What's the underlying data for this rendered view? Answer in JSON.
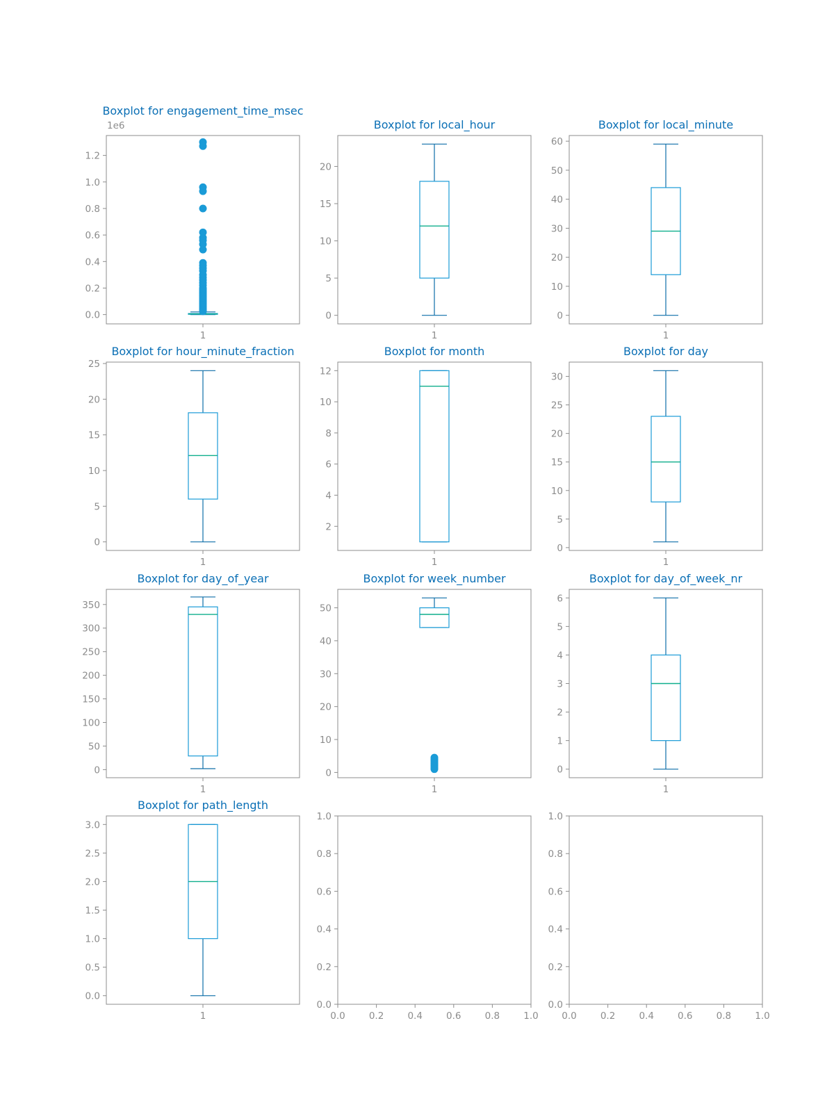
{
  "colors": {
    "title": "#0a6fb5",
    "box": "#1a9bd7",
    "whisker": "#0d6ea8",
    "median": "#0fae8c",
    "flier": "#1a9bd7",
    "axes": "#8c8c8c",
    "tick_label": "#8c8c8c"
  },
  "chart_data": [
    {
      "type": "boxplot",
      "title": "Boxplot for engagement_time_msec",
      "categories": [
        "1"
      ],
      "ylim": [
        -0.07,
        1.35
      ],
      "y_ticks": [
        0.0,
        0.2,
        0.4,
        0.6,
        0.8,
        1.0,
        1.2
      ],
      "y_tick_labels": [
        "0.0",
        "0.2",
        "0.4",
        "0.6",
        "0.8",
        "1.0",
        "1.2"
      ],
      "y_offset_label": "1e6",
      "box": {
        "whislo": 0.0,
        "q1": 0.002,
        "med": 0.005,
        "q3": 0.008,
        "whishi": 0.02
      },
      "fliers": [
        1.3,
        1.27,
        0.96,
        0.93,
        0.8,
        0.62,
        0.58,
        0.56,
        0.53,
        0.49,
        0.39,
        0.37,
        0.35,
        0.33,
        0.3,
        0.28,
        0.26,
        0.24,
        0.22,
        0.2,
        0.19,
        0.18,
        0.17,
        0.16,
        0.15,
        0.14,
        0.13,
        0.12,
        0.11,
        0.1,
        0.09,
        0.08,
        0.07,
        0.06,
        0.05,
        0.04,
        0.035,
        0.03,
        0.025
      ]
    },
    {
      "type": "boxplot",
      "title": "Boxplot for local_hour",
      "categories": [
        "1"
      ],
      "ylim": [
        -1.15,
        24.15
      ],
      "y_ticks": [
        0,
        5,
        10,
        15,
        20
      ],
      "y_tick_labels": [
        "0",
        "5",
        "10",
        "15",
        "20"
      ],
      "box": {
        "whislo": 0,
        "q1": 5,
        "med": 12,
        "q3": 18,
        "whishi": 23
      },
      "fliers": []
    },
    {
      "type": "boxplot",
      "title": "Boxplot for local_minute",
      "categories": [
        "1"
      ],
      "ylim": [
        -2.95,
        61.95
      ],
      "y_ticks": [
        0,
        10,
        20,
        30,
        40,
        50,
        60
      ],
      "y_tick_labels": [
        "0",
        "10",
        "20",
        "30",
        "40",
        "50",
        "60"
      ],
      "box": {
        "whislo": 0,
        "q1": 14,
        "med": 29,
        "q3": 44,
        "whishi": 59
      },
      "fliers": []
    },
    {
      "type": "boxplot",
      "title": "Boxplot for hour_minute_fraction",
      "categories": [
        "1"
      ],
      "ylim": [
        -1.2,
        25.2
      ],
      "y_ticks": [
        0,
        5,
        10,
        15,
        20,
        25
      ],
      "y_tick_labels": [
        "0",
        "5",
        "10",
        "15",
        "20",
        "25"
      ],
      "box": {
        "whislo": 0,
        "q1": 6,
        "med": 12.1,
        "q3": 18.1,
        "whishi": 24
      },
      "fliers": []
    },
    {
      "type": "boxplot",
      "title": "Boxplot for month",
      "categories": [
        "1"
      ],
      "ylim": [
        0.45,
        12.55
      ],
      "y_ticks": [
        2,
        4,
        6,
        8,
        10,
        12
      ],
      "y_tick_labels": [
        "2",
        "4",
        "6",
        "8",
        "10",
        "12"
      ],
      "box": {
        "whislo": 1,
        "q1": 1,
        "med": 11,
        "q3": 12,
        "whishi": 12
      },
      "fliers": []
    },
    {
      "type": "boxplot",
      "title": "Boxplot for day",
      "categories": [
        "1"
      ],
      "ylim": [
        -0.5,
        32.5
      ],
      "y_ticks": [
        0,
        5,
        10,
        15,
        20,
        25,
        30
      ],
      "y_tick_labels": [
        "0",
        "5",
        "10",
        "15",
        "20",
        "25",
        "30"
      ],
      "box": {
        "whislo": 1,
        "q1": 8,
        "med": 15,
        "q3": 23,
        "whishi": 31
      },
      "fliers": []
    },
    {
      "type": "boxplot",
      "title": "Boxplot for day_of_year",
      "categories": [
        "1"
      ],
      "ylim": [
        -17.1,
        382.1
      ],
      "y_ticks": [
        0,
        50,
        100,
        150,
        200,
        250,
        300,
        350
      ],
      "y_tick_labels": [
        "0",
        "50",
        "100",
        "150",
        "200",
        "250",
        "300",
        "350"
      ],
      "box": {
        "whislo": 2,
        "q1": 29,
        "med": 329,
        "q3": 345,
        "whishi": 366
      },
      "fliers": []
    },
    {
      "type": "boxplot",
      "title": "Boxplot for week_number",
      "categories": [
        "1"
      ],
      "ylim": [
        -1.6,
        55.6
      ],
      "y_ticks": [
        0,
        10,
        20,
        30,
        40,
        50
      ],
      "y_tick_labels": [
        "0",
        "10",
        "20",
        "30",
        "40",
        "50"
      ],
      "box": {
        "whislo": 44,
        "q1": 44,
        "med": 48,
        "q3": 50,
        "whishi": 53
      },
      "fliers": [
        1,
        1.5,
        2,
        2.5,
        3,
        3.5,
        4,
        4.5
      ]
    },
    {
      "type": "boxplot",
      "title": "Boxplot for day_of_week_nr",
      "categories": [
        "1"
      ],
      "ylim": [
        -0.3,
        6.3
      ],
      "y_ticks": [
        0,
        1,
        2,
        3,
        4,
        5,
        6
      ],
      "y_tick_labels": [
        "0",
        "1",
        "2",
        "3",
        "4",
        "5",
        "6"
      ],
      "box": {
        "whislo": 0,
        "q1": 1,
        "med": 3,
        "q3": 4,
        "whishi": 6
      },
      "fliers": []
    },
    {
      "type": "boxplot",
      "title": "Boxplot for path_length",
      "categories": [
        "1"
      ],
      "ylim": [
        -0.15,
        3.15
      ],
      "y_ticks": [
        0.0,
        0.5,
        1.0,
        1.5,
        2.0,
        2.5,
        3.0
      ],
      "y_tick_labels": [
        "0.0",
        "0.5",
        "1.0",
        "1.5",
        "2.0",
        "2.5",
        "3.0"
      ],
      "box": {
        "whislo": 0,
        "q1": 1,
        "med": 2,
        "q3": 3,
        "whishi": 3
      },
      "fliers": []
    },
    {
      "type": "empty",
      "title": "",
      "xlim": [
        0,
        1
      ],
      "ylim": [
        0,
        1
      ],
      "x_tick_labels": [
        "0.0",
        "0.2",
        "0.4",
        "0.6",
        "0.8",
        "1.0"
      ],
      "y_tick_labels": [
        "0.0",
        "0.2",
        "0.4",
        "0.6",
        "0.8",
        "1.0"
      ]
    },
    {
      "type": "empty",
      "title": "",
      "xlim": [
        0,
        1
      ],
      "ylim": [
        0,
        1
      ],
      "x_tick_labels": [
        "0.0",
        "0.2",
        "0.4",
        "0.6",
        "0.8",
        "1.0"
      ],
      "y_tick_labels": [
        "0.0",
        "0.2",
        "0.4",
        "0.6",
        "0.8",
        "1.0"
      ]
    }
  ]
}
